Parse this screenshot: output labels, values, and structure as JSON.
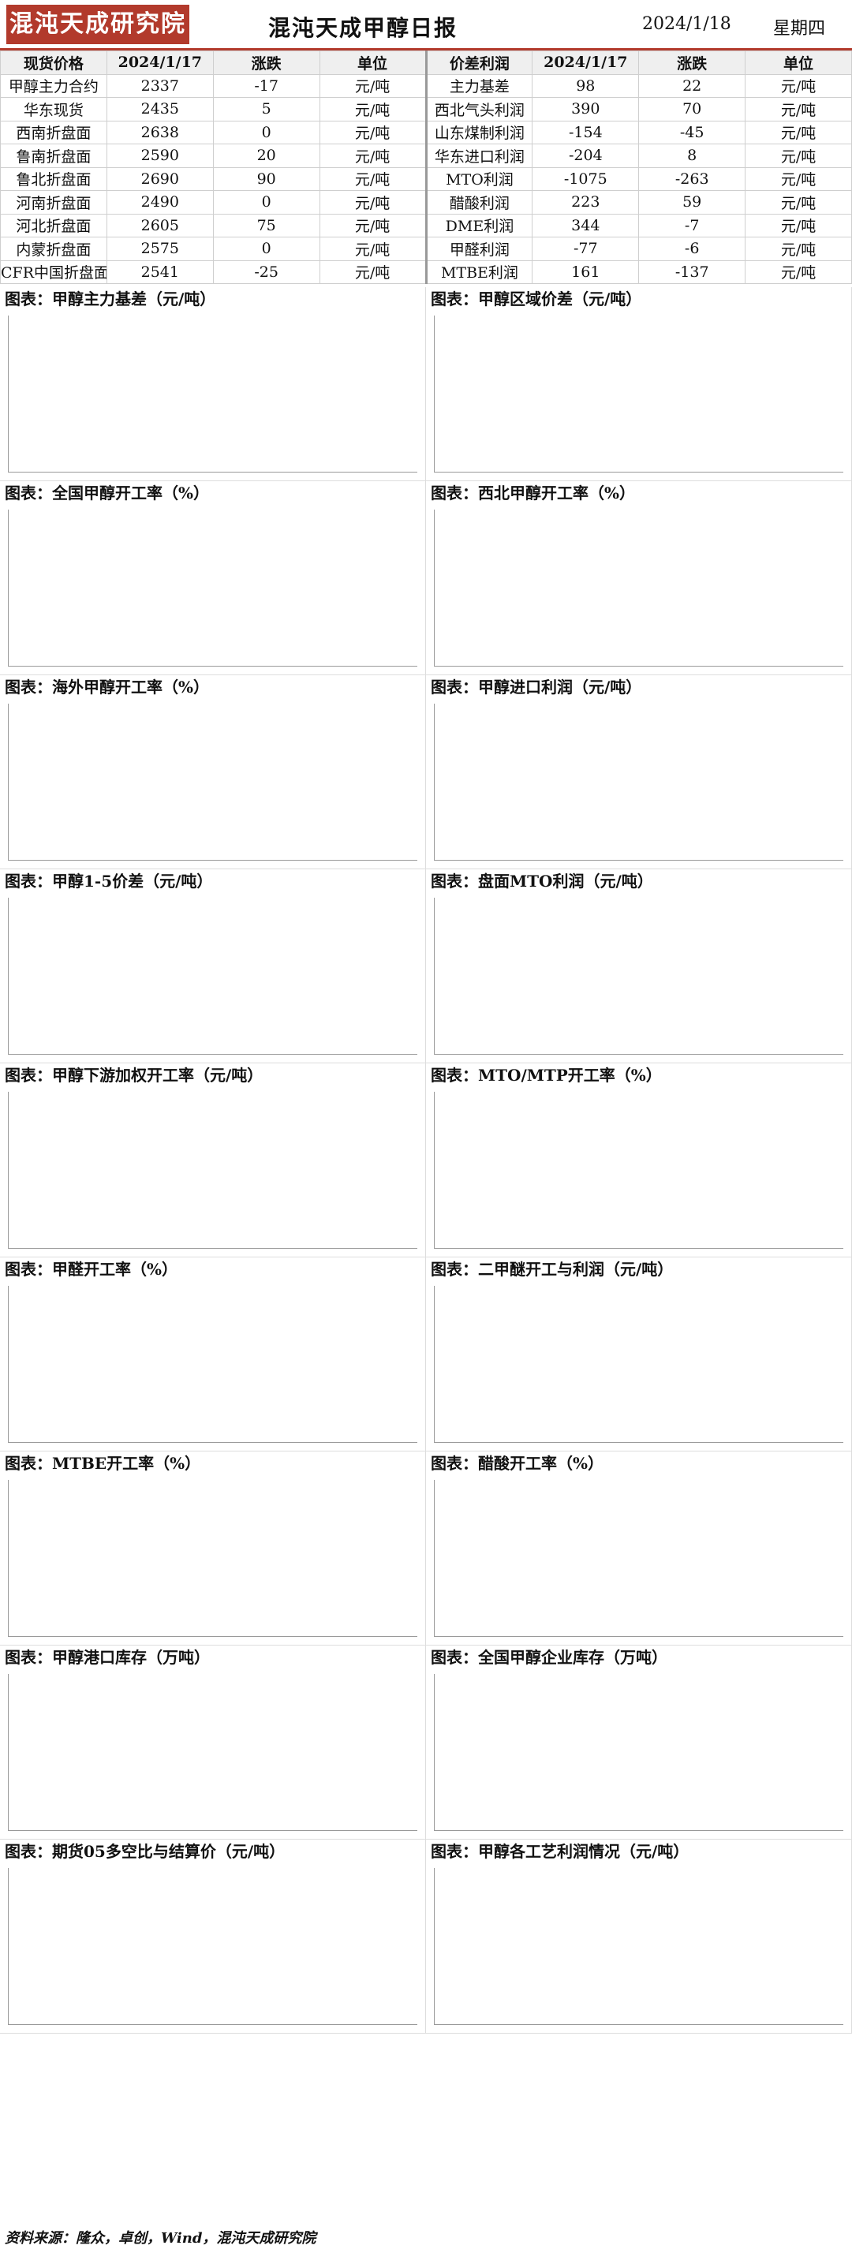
{
  "header": {
    "logo": "混沌天成研究院",
    "title": "混沌天成甲醇日报",
    "date": "2024/1/18",
    "weekday": "星期四"
  },
  "table": {
    "left_headers": [
      "现货价格",
      "2024/1/17",
      "涨跌",
      "单位"
    ],
    "right_headers": [
      "价差利润",
      "2024/1/17",
      "涨跌",
      "单位"
    ],
    "left_rows": [
      [
        "甲醇主力合约",
        "2337",
        "-17",
        "元/吨"
      ],
      [
        "华东现货",
        "2435",
        "5",
        "元/吨"
      ],
      [
        "西南折盘面",
        "2638",
        "0",
        "元/吨"
      ],
      [
        "鲁南折盘面",
        "2590",
        "20",
        "元/吨"
      ],
      [
        "鲁北折盘面",
        "2690",
        "90",
        "元/吨"
      ],
      [
        "河南折盘面",
        "2490",
        "0",
        "元/吨"
      ],
      [
        "河北折盘面",
        "2605",
        "75",
        "元/吨"
      ],
      [
        "内蒙折盘面",
        "2575",
        "0",
        "元/吨"
      ],
      [
        "CFR中国折盘面",
        "2541",
        "-25",
        "元/吨"
      ]
    ],
    "right_rows": [
      [
        "主力基差",
        "98",
        "22",
        "元/吨"
      ],
      [
        "西北气头利润",
        "390",
        "70",
        "元/吨"
      ],
      [
        "山东煤制利润",
        "-154",
        "-45",
        "元/吨"
      ],
      [
        "华东进口利润",
        "-204",
        "8",
        "元/吨"
      ],
      [
        "MTO利润",
        "-1075",
        "-263",
        "元/吨"
      ],
      [
        "醋酸利润",
        "223",
        "59",
        "元/吨"
      ],
      [
        "DME利润",
        "344",
        "-7",
        "元/吨"
      ],
      [
        "甲醛利润",
        "-77",
        "-6",
        "元/吨"
      ],
      [
        "MTBE利润",
        "161",
        "-137",
        "元/吨"
      ]
    ]
  },
  "charts": [
    "图表：甲醇主力基差（元/吨）",
    "图表：甲醇区域价差（元/吨）",
    "图表：全国甲醇开工率（%）",
    "图表：西北甲醇开工率（%）",
    "图表：海外甲醇开工率（%）",
    "图表：甲醇进口利润（元/吨）",
    "图表：甲醇1-5价差（元/吨）",
    "图表：盘面MTO利润（元/吨）",
    "图表：甲醇下游加权开工率（元/吨）",
    "图表：MTO/MTP开工率（%）",
    "图表：甲醛开工率（%）",
    "图表：二甲醚开工与利润（元/吨）",
    "图表：MTBE开工率（%）",
    "图表：醋酸开工率（%）",
    "图表：甲醇港口库存（万吨）",
    "图表：全国甲醇企业库存（万吨）",
    "图表：期货05多空比与结算价（元/吨）",
    "图表：甲醇各工艺利润情况（元/吨）"
  ],
  "footer": "资料来源：隆众，卓创，Wind，混沌天成研究院"
}
